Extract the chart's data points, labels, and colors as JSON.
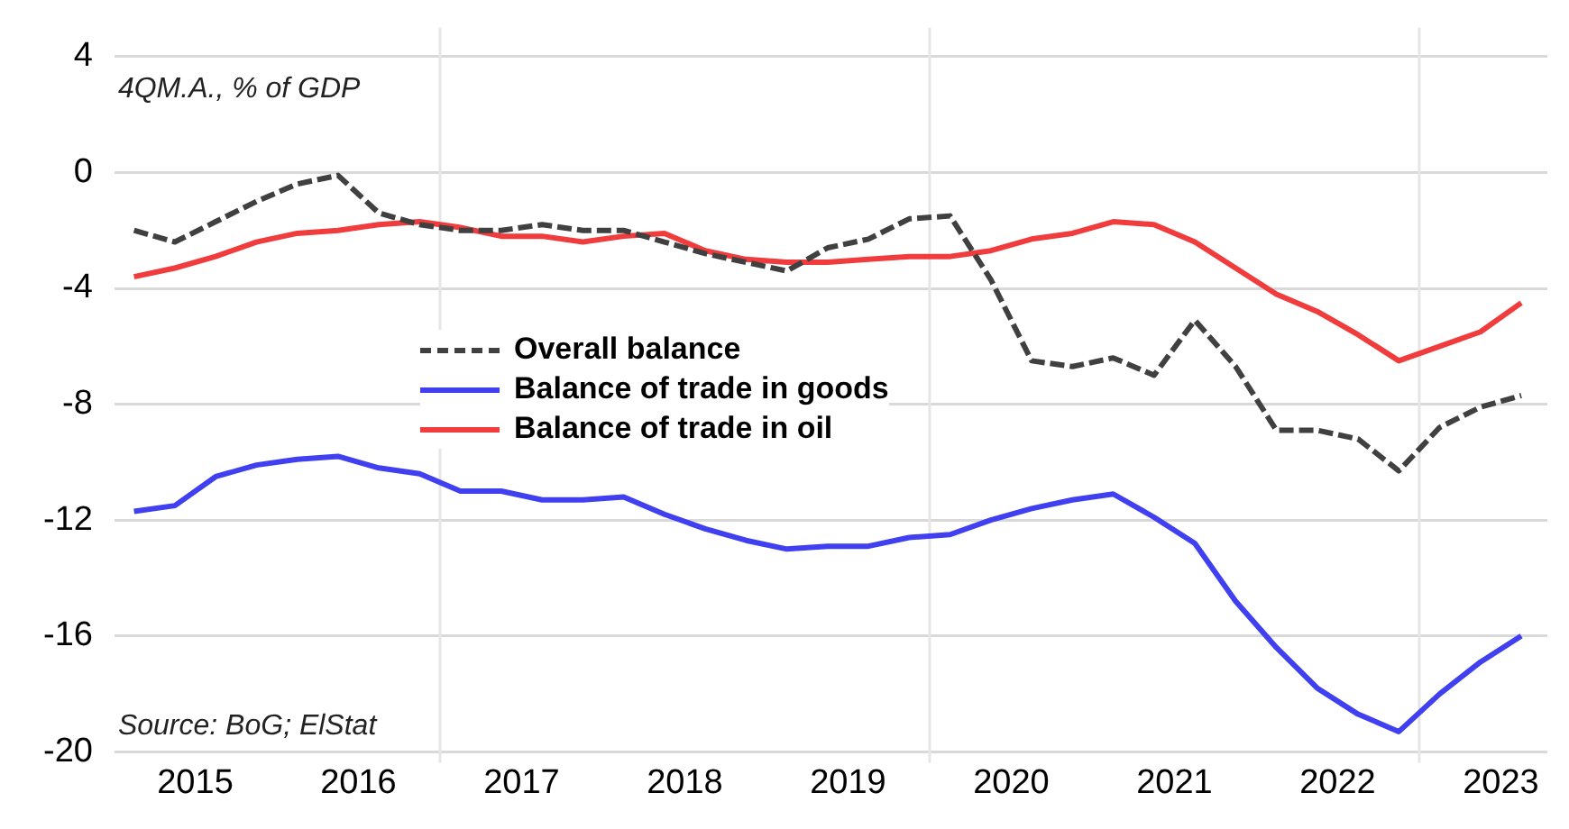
{
  "chart_data": {
    "type": "line",
    "ylabel": "4QM.A., % of GDP",
    "annotations": [
      "Source: BoG; ElStat"
    ],
    "x": [
      2015,
      2015.25,
      2015.5,
      2015.75,
      2016,
      2016.25,
      2016.5,
      2016.75,
      2017,
      2017.25,
      2017.5,
      2017.75,
      2018,
      2018.25,
      2018.5,
      2018.75,
      2019,
      2019.25,
      2019.5,
      2019.75,
      2020,
      2020.25,
      2020.5,
      2020.75,
      2021,
      2021.25,
      2021.5,
      2021.75,
      2022,
      2022.25,
      2022.5,
      2022.75,
      2023,
      2023.25,
      2023.5
    ],
    "series": [
      {
        "name": "Overall balance",
        "color": "#404040",
        "line_style": "dashed",
        "values": [
          -2.0,
          -2.4,
          -1.7,
          -1.0,
          -0.4,
          -0.1,
          -1.4,
          -1.8,
          -2.0,
          -2.0,
          -1.8,
          -2.0,
          -2.0,
          -2.4,
          -2.8,
          -3.1,
          -3.4,
          -2.6,
          -2.3,
          -1.6,
          -1.5,
          -3.7,
          -6.5,
          -6.7,
          -6.4,
          -7.0,
          -5.1,
          -6.7,
          -8.9,
          -8.9,
          -9.2,
          -10.3,
          -8.8,
          -8.1,
          -7.7
        ]
      },
      {
        "name": "Balance of trade in goods",
        "color": "#4040f0",
        "line_style": "solid",
        "values": [
          -11.7,
          -11.5,
          -10.5,
          -10.1,
          -9.9,
          -9.8,
          -10.2,
          -10.4,
          -11.0,
          -11.0,
          -11.3,
          -11.3,
          -11.2,
          -11.8,
          -12.3,
          -12.7,
          -13.0,
          -12.9,
          -12.9,
          -12.6,
          -12.5,
          -12.0,
          -11.6,
          -11.3,
          -11.1,
          -11.9,
          -12.8,
          -14.8,
          -16.4,
          -17.8,
          -18.7,
          -19.3,
          -18.0,
          -16.9,
          -16.0
        ]
      },
      {
        "name": "Balance of trade in oil",
        "color": "#f03c3c",
        "line_style": "solid",
        "values": [
          -3.6,
          -3.3,
          -2.9,
          -2.4,
          -2.1,
          -2.0,
          -1.8,
          -1.7,
          -1.9,
          -2.2,
          -2.2,
          -2.4,
          -2.2,
          -2.1,
          -2.7,
          -3.0,
          -3.1,
          -3.1,
          -3.0,
          -2.9,
          -2.9,
          -2.7,
          -2.3,
          -2.1,
          -1.7,
          -1.8,
          -2.4,
          -3.3,
          -4.2,
          -4.8,
          -5.6,
          -6.5,
          -6.0,
          -5.5,
          -4.5
        ]
      }
    ],
    "xlim": [
      2014.88,
      2023.66
    ],
    "xticks": [
      {
        "value": 2015.375,
        "label": "2015"
      },
      {
        "value": 2016.375,
        "label": "2016"
      },
      {
        "value": 2017.375,
        "label": "2017"
      },
      {
        "value": 2018.375,
        "label": "2018"
      },
      {
        "value": 2019.375,
        "label": "2019"
      },
      {
        "value": 2020.375,
        "label": "2020"
      },
      {
        "value": 2021.375,
        "label": "2021"
      },
      {
        "value": 2022.375,
        "label": "2022"
      },
      {
        "value": 2023.375,
        "label": "2023"
      }
    ],
    "ylim": [
      -20,
      4
    ],
    "yticks": [
      -20,
      -16,
      -12,
      -8,
      -4,
      0,
      4
    ],
    "ref_lines": [
      {
        "axis": "x",
        "value": 2016.875,
        "color": "#e6e6e6"
      },
      {
        "axis": "x",
        "value": 2019.875,
        "color": "#e6e6e6"
      },
      {
        "axis": "x",
        "value": 2022.875,
        "color": "#e6e6e6"
      }
    ],
    "grid": "y",
    "legend": "center",
    "marker": "none"
  }
}
